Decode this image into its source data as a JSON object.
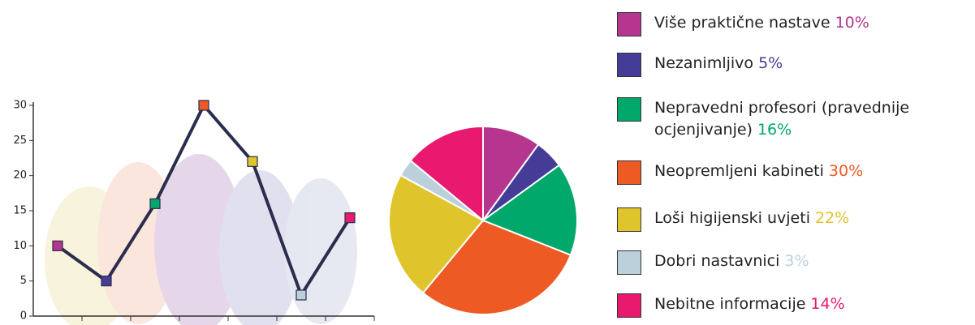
{
  "chart_data": [
    {
      "type": "line",
      "categories": [
        null,
        null,
        null,
        null,
        null,
        null,
        null
      ],
      "series": [
        {
          "color": "#2b2d4e",
          "values": [
            10,
            5,
            16,
            30,
            22,
            3,
            14
          ],
          "point_colors": [
            "#b5358f",
            "#443c96",
            "#00a86b",
            "#ee5a24",
            "#dfc42b",
            "#bcd0dc",
            "#e8196e"
          ]
        }
      ],
      "ylim": [
        0,
        30
      ],
      "yticks": [
        0,
        5,
        10,
        15,
        20,
        25,
        30
      ]
    },
    {
      "type": "pie",
      "categories": [
        "Više praktične nastave",
        "Nezanimljivo",
        "Nepravedni profesori (pravednije ocjenjivanje)",
        "Neopremljeni kabineti",
        "Loši higijenski uvjeti",
        "Dobri nastavnici",
        "Nebitne informacije"
      ],
      "values": [
        10,
        5,
        16,
        30,
        22,
        3,
        14
      ],
      "value_labels": [
        "10%",
        "5%",
        "16%",
        "30%",
        "22%",
        "3%",
        "14%"
      ],
      "colors": [
        "#b5358f",
        "#443c96",
        "#00a86b",
        "#ee5a24",
        "#dfc42b",
        "#bcd0dc",
        "#e8196e"
      ]
    }
  ]
}
